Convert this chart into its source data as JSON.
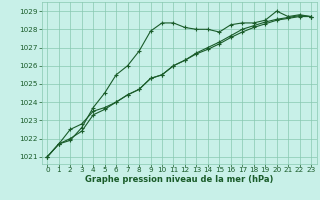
{
  "title": "Graphe pression niveau de la mer (hPa)",
  "background_color": "#c8f0e8",
  "grid_color": "#88c8b0",
  "line_color": "#1a5c2a",
  "xlim": [
    -0.5,
    23.5
  ],
  "ylim": [
    1020.6,
    1029.5
  ],
  "yticks": [
    1021,
    1022,
    1023,
    1024,
    1025,
    1026,
    1027,
    1028,
    1029
  ],
  "xticks": [
    0,
    1,
    2,
    3,
    4,
    5,
    6,
    7,
    8,
    9,
    10,
    11,
    12,
    13,
    14,
    15,
    16,
    17,
    18,
    19,
    20,
    21,
    22,
    23
  ],
  "x": [
    0,
    1,
    2,
    3,
    4,
    5,
    6,
    7,
    8,
    9,
    10,
    11,
    12,
    13,
    14,
    15,
    16,
    17,
    18,
    19,
    20,
    21,
    22,
    23
  ],
  "line1": [
    1021.0,
    1021.7,
    1021.9,
    1022.6,
    1023.7,
    1024.5,
    1025.5,
    1026.0,
    1026.8,
    1027.9,
    1028.35,
    1028.35,
    1028.1,
    1028.0,
    1028.0,
    1027.85,
    1028.25,
    1028.35,
    1028.35,
    1028.5,
    1029.0,
    1028.7,
    1028.8,
    1028.7
  ],
  "line2": [
    1021.0,
    1021.7,
    1022.5,
    1022.8,
    1023.5,
    1023.7,
    1024.0,
    1024.4,
    1024.7,
    1025.3,
    1025.5,
    1026.0,
    1026.3,
    1026.7,
    1027.0,
    1027.3,
    1027.65,
    1028.0,
    1028.2,
    1028.4,
    1028.55,
    1028.65,
    1028.75,
    1028.7
  ],
  "line3": [
    1021.0,
    1021.7,
    1022.0,
    1022.4,
    1023.3,
    1023.6,
    1024.0,
    1024.4,
    1024.7,
    1025.3,
    1025.5,
    1026.0,
    1026.3,
    1026.65,
    1026.9,
    1027.2,
    1027.55,
    1027.85,
    1028.1,
    1028.3,
    1028.5,
    1028.6,
    1028.7,
    1028.7
  ],
  "title_fontsize": 6.0,
  "tick_fontsize": 5.2,
  "label_color": "#1a5c2a"
}
